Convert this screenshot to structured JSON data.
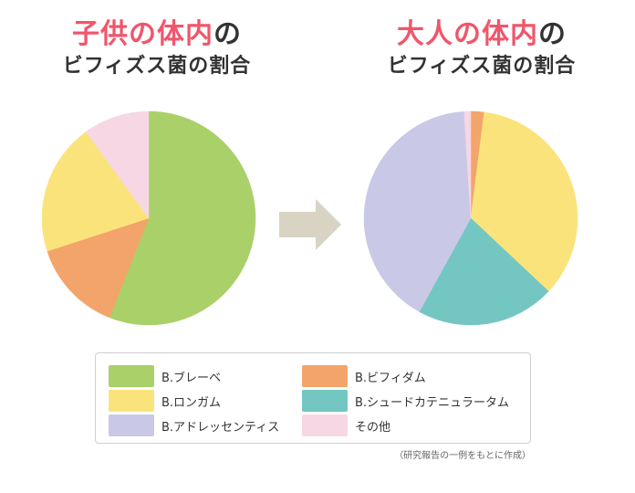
{
  "titles": {
    "left": {
      "accent": "子供の体内",
      "suffix": "の",
      "line2": "ビフィズス菌の割合"
    },
    "right": {
      "accent": "大人の体内",
      "suffix": "の",
      "line2": "ビフィズス菌の割合"
    }
  },
  "colors": {
    "accent": "#f0566b",
    "arrow": "#d9d3c4"
  },
  "chart_data": [
    {
      "type": "pie",
      "title": "子供の体内のビフィズス菌の割合",
      "slices": [
        {
          "label": "B.ブレーベ",
          "value": 56,
          "color": "#aad06a"
        },
        {
          "label": "B.ビフィダム",
          "value": 14,
          "color": "#f2a46a"
        },
        {
          "label": "B.ロンガム",
          "value": 20,
          "color": "#fbe37c"
        },
        {
          "label": "その他",
          "value": 10,
          "color": "#f6d7e3"
        }
      ],
      "start": "top",
      "direction": "clockwise"
    },
    {
      "type": "pie",
      "title": "大人の体内のビフィズス菌の割合",
      "slices": [
        {
          "label": "B.ビフィダム",
          "value": 2,
          "color": "#f2a46a"
        },
        {
          "label": "B.ロンガム",
          "value": 35,
          "color": "#fbe37c"
        },
        {
          "label": "B.シュードカテニュラータム",
          "value": 21,
          "color": "#74c6c2"
        },
        {
          "label": "B.アドレッセンティス",
          "value": 41,
          "color": "#c9c8e6"
        },
        {
          "label": "その他",
          "value": 1,
          "color": "#f6d7e3"
        }
      ],
      "start": "top",
      "direction": "clockwise"
    }
  ],
  "legend": {
    "items": [
      {
        "label": "B.ブレーベ",
        "color": "#aad06a"
      },
      {
        "label": "B.ビフィダム",
        "color": "#f2a46a"
      },
      {
        "label": "B.ロンガム",
        "color": "#fbe37c"
      },
      {
        "label": "B.シュードカテニュラータム",
        "color": "#74c6c2"
      },
      {
        "label": "B.アドレッセンティス",
        "color": "#c9c8e6"
      },
      {
        "label": "その他",
        "color": "#f6d7e3"
      }
    ]
  },
  "source_note": "（研究報告の一例をもとに作成）"
}
